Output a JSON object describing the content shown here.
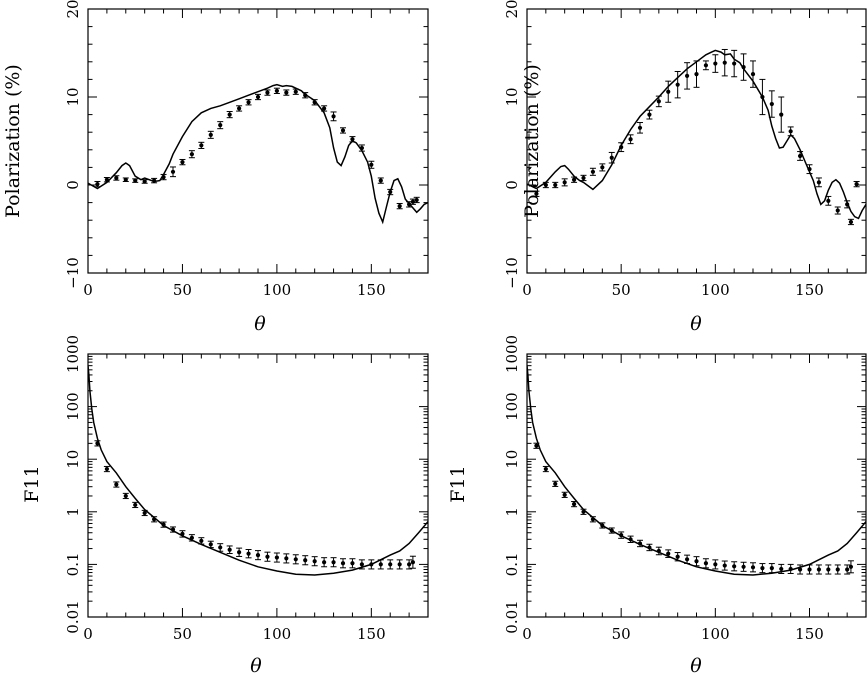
{
  "figure": {
    "background": "#ffffff",
    "ink": "#000000"
  },
  "chart_data": [
    {
      "type": "scatter",
      "scale": "linear",
      "xlabel": "θ",
      "ylabel": "Polarization (%)",
      "xlim": [
        0,
        180
      ],
      "ylim": [
        -10,
        20
      ],
      "xticks": [
        0,
        50,
        100,
        150
      ],
      "yticks": [
        -10,
        0,
        10,
        20
      ],
      "ytick_labels": [
        "−10",
        "0",
        "10",
        "20"
      ],
      "model_curve": {
        "x": [
          0,
          5,
          10,
          15,
          18,
          20,
          22,
          25,
          28,
          30,
          35,
          38,
          40,
          43,
          45,
          50,
          55,
          60,
          65,
          70,
          75,
          80,
          85,
          90,
          95,
          98,
          100,
          103,
          105,
          108,
          110,
          113,
          115,
          120,
          125,
          128,
          130,
          132,
          134,
          136,
          138,
          140,
          142,
          145,
          148,
          150,
          152,
          154,
          156,
          158,
          160,
          162,
          164,
          166,
          168,
          170,
          172,
          174,
          176,
          178,
          180
        ],
        "y": [
          0.2,
          -0.4,
          0.3,
          1.4,
          2.2,
          2.5,
          2.2,
          1.0,
          0.6,
          0.8,
          0.4,
          0.5,
          1.2,
          2.4,
          3.5,
          5.5,
          7.2,
          8.2,
          8.7,
          9.0,
          9.4,
          9.8,
          10.2,
          10.6,
          11.0,
          11.3,
          11.4,
          11.2,
          11.3,
          11.2,
          11.0,
          10.7,
          10.3,
          9.6,
          8.2,
          6.5,
          4.2,
          2.6,
          2.2,
          3.2,
          4.5,
          5.0,
          4.8,
          3.9,
          2.6,
          1.0,
          -1.5,
          -3.2,
          -4.2,
          -2.5,
          -0.8,
          0.5,
          0.7,
          -0.2,
          -1.6,
          -2.1,
          -2.6,
          -3.1,
          -2.7,
          -2.2,
          -2.0
        ]
      },
      "measurements": {
        "x": [
          5,
          10,
          15,
          20,
          25,
          30,
          35,
          40,
          45,
          50,
          55,
          60,
          65,
          70,
          75,
          80,
          85,
          90,
          95,
          100,
          105,
          110,
          115,
          120,
          125,
          130,
          135,
          140,
          145,
          150,
          155,
          160,
          165,
          170,
          172,
          174
        ],
        "y": [
          0.1,
          0.6,
          0.8,
          0.6,
          0.5,
          0.4,
          0.5,
          0.9,
          1.5,
          2.6,
          3.5,
          4.5,
          5.7,
          6.8,
          8.0,
          8.7,
          9.4,
          10.0,
          10.5,
          10.7,
          10.5,
          10.6,
          10.2,
          9.4,
          8.7,
          7.8,
          6.2,
          5.2,
          4.2,
          2.3,
          0.5,
          -0.8,
          -2.4,
          -2.2,
          -1.9,
          -1.7
        ],
        "err": [
          0.3,
          0.25,
          0.25,
          0.2,
          0.2,
          0.2,
          0.25,
          0.3,
          0.55,
          0.3,
          0.4,
          0.35,
          0.4,
          0.4,
          0.35,
          0.3,
          0.3,
          0.3,
          0.3,
          0.3,
          0.3,
          0.3,
          0.3,
          0.3,
          0.3,
          0.5,
          0.3,
          0.3,
          0.35,
          0.4,
          0.3,
          0.3,
          0.3,
          0.3,
          0.3,
          0.3
        ]
      }
    },
    {
      "type": "scatter",
      "scale": "linear",
      "xlabel": "θ",
      "ylabel": "Polarization (%)",
      "xlim": [
        0,
        180
      ],
      "ylim": [
        -10,
        20
      ],
      "xticks": [
        0,
        50,
        100,
        150
      ],
      "yticks": [
        -10,
        0,
        10,
        20
      ],
      "ytick_labels": [
        "−10",
        "0",
        "10",
        "20"
      ],
      "model_curve": {
        "x": [
          0,
          5,
          10,
          15,
          18,
          20,
          22,
          25,
          28,
          30,
          35,
          40,
          45,
          50,
          55,
          60,
          65,
          70,
          75,
          80,
          85,
          90,
          95,
          98,
          100,
          103,
          105,
          108,
          110,
          113,
          115,
          120,
          125,
          128,
          130,
          132,
          134,
          136,
          138,
          140,
          142,
          145,
          148,
          150,
          152,
          154,
          156,
          158,
          160,
          162,
          164,
          166,
          168,
          170,
          172,
          174,
          176,
          178,
          180
        ],
        "y": [
          0.1,
          -0.4,
          0.3,
          1.5,
          2.1,
          2.2,
          1.8,
          1.0,
          0.5,
          0.3,
          -0.5,
          0.5,
          2.3,
          4.5,
          6.3,
          7.8,
          8.9,
          10.0,
          11.2,
          12.2,
          13.2,
          14.0,
          14.8,
          15.1,
          15.3,
          15.1,
          14.8,
          14.9,
          14.3,
          13.9,
          13.2,
          11.8,
          10.0,
          8.5,
          6.7,
          5.3,
          4.2,
          4.3,
          5.0,
          5.7,
          5.3,
          4.0,
          2.5,
          1.5,
          0.5,
          -1.0,
          -2.2,
          -1.8,
          -0.6,
          0.3,
          0.6,
          0.2,
          -0.8,
          -2.0,
          -3.0,
          -3.6,
          -3.8,
          -2.9,
          -2.2
        ]
      },
      "measurements": {
        "x": [
          5,
          10,
          15,
          20,
          25,
          30,
          35,
          40,
          45,
          50,
          55,
          60,
          65,
          70,
          75,
          80,
          85,
          90,
          95,
          100,
          105,
          110,
          115,
          120,
          125,
          130,
          135,
          140,
          145,
          150,
          155,
          160,
          165,
          170,
          172,
          175
        ],
        "y": [
          -1.0,
          0.0,
          0.0,
          0.3,
          0.6,
          0.8,
          1.5,
          2.0,
          3.1,
          4.3,
          5.2,
          6.5,
          8.0,
          9.5,
          10.6,
          11.4,
          12.4,
          12.6,
          13.6,
          13.8,
          13.9,
          13.8,
          13.4,
          12.6,
          10.0,
          9.2,
          8.0,
          6.1,
          3.3,
          1.8,
          0.3,
          -1.8,
          -2.9,
          -2.2,
          -4.2,
          0.1
        ],
        "err": [
          0.3,
          0.3,
          0.3,
          0.4,
          0.3,
          0.3,
          0.4,
          0.4,
          0.6,
          0.5,
          0.5,
          0.6,
          0.5,
          0.6,
          1.2,
          1.5,
          1.5,
          1.5,
          0.5,
          1.0,
          1.5,
          1.5,
          1.5,
          1.5,
          2.0,
          1.5,
          2.0,
          0.5,
          0.5,
          0.5,
          0.5,
          0.5,
          0.4,
          0.4,
          0.3,
          0.3
        ]
      }
    },
    {
      "type": "scatter",
      "scale": "log",
      "xlabel": "θ",
      "ylabel": "F11",
      "xlim": [
        0,
        180
      ],
      "ylim": [
        0.01,
        1000
      ],
      "xticks": [
        0,
        50,
        100,
        150
      ],
      "yticks": [
        0.01,
        0.1,
        1,
        10,
        100,
        1000
      ],
      "ytick_labels": [
        "0.01",
        "0.1",
        "1",
        "10",
        "100",
        "1000"
      ],
      "model_curve": {
        "x": [
          0,
          0.5,
          1,
          2,
          3,
          5,
          7,
          10,
          15,
          20,
          25,
          30,
          40,
          50,
          60,
          70,
          80,
          90,
          100,
          110,
          120,
          130,
          140,
          150,
          160,
          165,
          170,
          175,
          180
        ],
        "y": [
          600,
          400,
          200,
          90,
          50,
          25,
          15,
          9,
          5.5,
          3,
          1.8,
          1.1,
          0.55,
          0.35,
          0.24,
          0.17,
          0.12,
          0.09,
          0.075,
          0.065,
          0.063,
          0.068,
          0.078,
          0.1,
          0.15,
          0.18,
          0.25,
          0.4,
          0.65
        ]
      },
      "measurements": {
        "x": [
          5,
          10,
          15,
          20,
          25,
          30,
          35,
          40,
          45,
          50,
          55,
          60,
          65,
          70,
          75,
          80,
          85,
          90,
          95,
          100,
          105,
          110,
          115,
          120,
          125,
          130,
          135,
          140,
          145,
          150,
          155,
          160,
          165,
          170,
          172
        ],
        "y": [
          20,
          6.5,
          3.3,
          2.0,
          1.35,
          0.95,
          0.72,
          0.57,
          0.46,
          0.38,
          0.32,
          0.28,
          0.24,
          0.21,
          0.19,
          0.17,
          0.16,
          0.15,
          0.14,
          0.135,
          0.13,
          0.125,
          0.12,
          0.115,
          0.11,
          0.11,
          0.105,
          0.105,
          0.1,
          0.1,
          0.1,
          0.1,
          0.1,
          0.1,
          0.11
        ],
        "err_factor": [
          1.12,
          1.12,
          1.12,
          1.12,
          1.12,
          1.12,
          1.12,
          1.12,
          1.12,
          1.15,
          1.15,
          1.15,
          1.15,
          1.18,
          1.18,
          1.2,
          1.2,
          1.22,
          1.22,
          1.22,
          1.22,
          1.22,
          1.22,
          1.22,
          1.22,
          1.22,
          1.22,
          1.22,
          1.22,
          1.22,
          1.22,
          1.22,
          1.22,
          1.22,
          1.3
        ]
      }
    },
    {
      "type": "scatter",
      "scale": "log",
      "xlabel": "θ",
      "ylabel": "F11",
      "xlim": [
        0,
        180
      ],
      "ylim": [
        0.01,
        1000
      ],
      "xticks": [
        0,
        50,
        100,
        150
      ],
      "yticks": [
        0.01,
        0.1,
        1,
        10,
        100,
        1000
      ],
      "ytick_labels": [
        "0.01",
        "0.1",
        "1",
        "10",
        "100",
        "1000"
      ],
      "model_curve": {
        "x": [
          0,
          0.5,
          1,
          2,
          3,
          5,
          7,
          10,
          15,
          20,
          25,
          30,
          40,
          50,
          60,
          70,
          80,
          90,
          100,
          110,
          120,
          130,
          140,
          150,
          160,
          165,
          170,
          175,
          180
        ],
        "y": [
          600,
          400,
          200,
          90,
          50,
          25,
          15,
          9,
          5.5,
          3,
          1.8,
          1.1,
          0.55,
          0.35,
          0.24,
          0.17,
          0.12,
          0.09,
          0.075,
          0.065,
          0.063,
          0.068,
          0.078,
          0.1,
          0.15,
          0.18,
          0.25,
          0.4,
          0.65
        ]
      },
      "measurements": {
        "x": [
          5,
          10,
          15,
          20,
          25,
          30,
          35,
          40,
          45,
          50,
          55,
          60,
          65,
          70,
          75,
          80,
          85,
          90,
          95,
          100,
          105,
          110,
          115,
          120,
          125,
          130,
          135,
          140,
          145,
          150,
          155,
          160,
          165,
          170,
          172
        ],
        "y": [
          18,
          6.5,
          3.4,
          2.1,
          1.4,
          1.0,
          0.72,
          0.55,
          0.44,
          0.36,
          0.3,
          0.25,
          0.21,
          0.18,
          0.16,
          0.14,
          0.125,
          0.115,
          0.105,
          0.1,
          0.095,
          0.092,
          0.09,
          0.088,
          0.085,
          0.085,
          0.082,
          0.082,
          0.08,
          0.08,
          0.08,
          0.08,
          0.08,
          0.08,
          0.09
        ],
        "err_factor": [
          1.12,
          1.12,
          1.12,
          1.12,
          1.12,
          1.12,
          1.12,
          1.12,
          1.12,
          1.15,
          1.15,
          1.15,
          1.15,
          1.18,
          1.18,
          1.2,
          1.2,
          1.22,
          1.22,
          1.22,
          1.22,
          1.22,
          1.22,
          1.22,
          1.22,
          1.22,
          1.22,
          1.22,
          1.22,
          1.22,
          1.22,
          1.22,
          1.22,
          1.22,
          1.3
        ]
      }
    }
  ]
}
